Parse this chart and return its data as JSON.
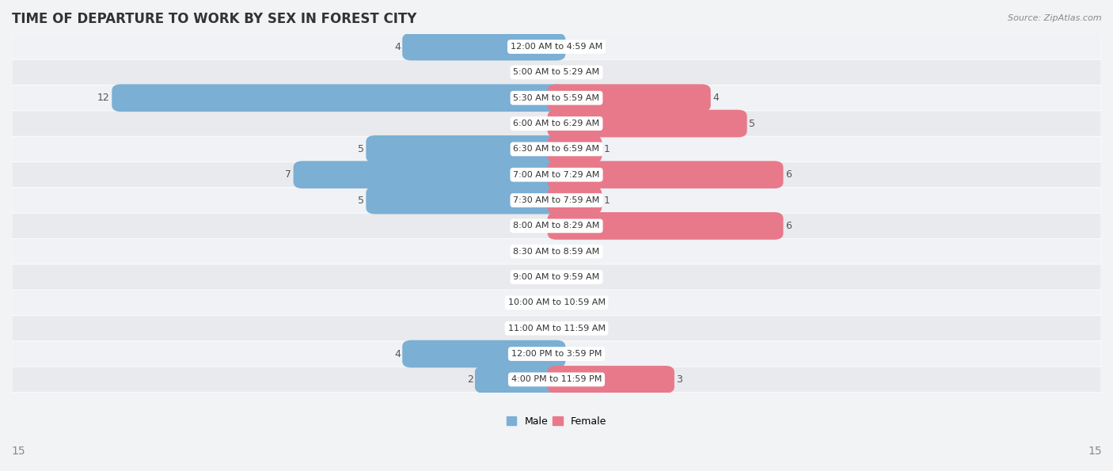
{
  "title": "TIME OF DEPARTURE TO WORK BY SEX IN FOREST CITY",
  "source": "Source: ZipAtlas.com",
  "categories": [
    "12:00 AM to 4:59 AM",
    "5:00 AM to 5:29 AM",
    "5:30 AM to 5:59 AM",
    "6:00 AM to 6:29 AM",
    "6:30 AM to 6:59 AM",
    "7:00 AM to 7:29 AM",
    "7:30 AM to 7:59 AM",
    "8:00 AM to 8:29 AM",
    "8:30 AM to 8:59 AM",
    "9:00 AM to 9:59 AM",
    "10:00 AM to 10:59 AM",
    "11:00 AM to 11:59 AM",
    "12:00 PM to 3:59 PM",
    "4:00 PM to 11:59 PM"
  ],
  "male_values": [
    4,
    0,
    12,
    0,
    5,
    7,
    5,
    0,
    0,
    0,
    0,
    0,
    4,
    2
  ],
  "female_values": [
    0,
    0,
    4,
    5,
    1,
    6,
    1,
    6,
    0,
    0,
    0,
    0,
    0,
    3
  ],
  "male_color": "#7bafd4",
  "female_color": "#e8798a",
  "bar_height": 0.58,
  "xlim": 15,
  "row_color_odd": "#f0f2f5",
  "row_color_even": "#e8eaed",
  "title_fontsize": 12,
  "label_fontsize": 9,
  "category_fontsize": 8,
  "legend_fontsize": 9
}
